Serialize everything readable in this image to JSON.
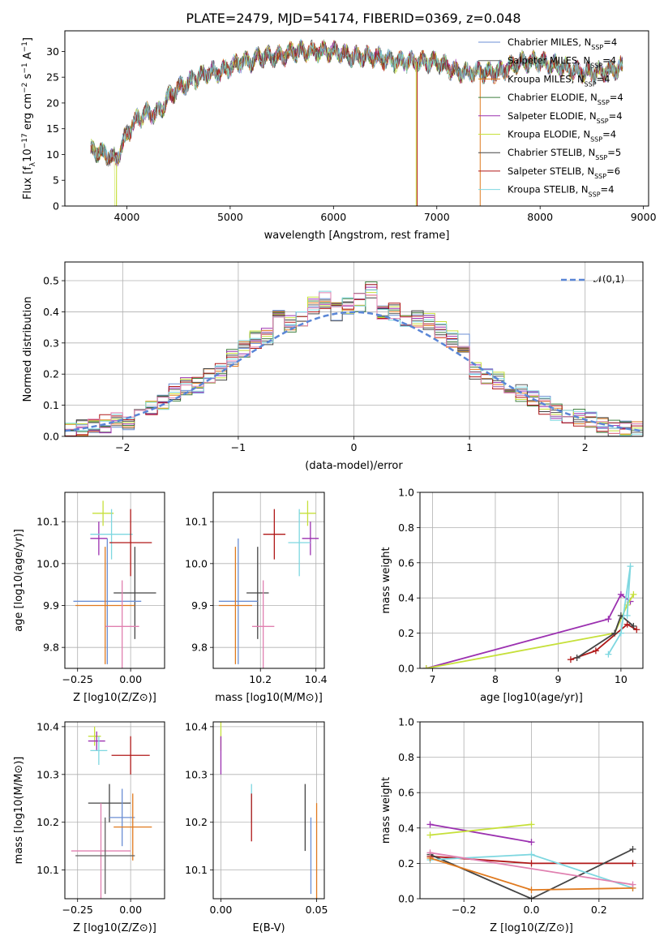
{
  "figure": {
    "title": "PLATE=2479, MJD=54174, FIBERID=0369, z=0.048"
  },
  "colors": {
    "series": [
      "#6b8fd4",
      "#5f5f5f",
      "#e07a1f",
      "#3f7f3f",
      "#9b30b0",
      "#c6e03a",
      "#444444",
      "#b01818",
      "#7ed7e0"
    ],
    "pink": "#e080b0",
    "green2": "#80c040",
    "normal_curve": "#5a86d6",
    "grid": "#b0b0b0"
  },
  "chart_data": [
    {
      "id": "spectrum",
      "type": "line",
      "xlabel": "wavelength [Angstrom, rest frame]",
      "ylabel": "Flux [f_λ10^-17 erg cm^-2 s^-1 A^-1]",
      "xlim": [
        3400,
        9050
      ],
      "ylim": [
        0,
        34
      ],
      "xticks": [
        4000,
        5000,
        6000,
        7000,
        8000,
        9000
      ],
      "yticks": [
        0,
        5,
        10,
        15,
        20,
        25,
        30
      ],
      "grid": false,
      "legend": "top-right",
      "legend_entries": [
        "Chabrier MILES, N_SSP=4",
        "Salpeter MILES, N_SSP=4",
        "Kroupa MILES, N_SSP=4",
        "Chabrier ELODIE, N_SSP=4",
        "Salpeter ELODIE, N_SSP=4",
        "Kroupa ELODIE, N_SSP=4",
        "Chabrier STELIB, N_SSP=5",
        "Salpeter STELIB, N_SSP=6",
        "Kroupa STELIB, N_SSP=4"
      ],
      "continuum": {
        "x": [
          3650,
          3800,
          3900,
          4000,
          4100,
          4200,
          4300,
          4400,
          4500,
          4600,
          4700,
          4800,
          4900,
          5000,
          5100,
          5200,
          5300,
          5400,
          5500,
          5600,
          5700,
          5800,
          5900,
          6000,
          6200,
          6400,
          6600,
          6800,
          7000,
          7200,
          7400,
          7600,
          7800,
          8000,
          8200,
          8400,
          8600,
          8800
        ],
        "y": [
          11,
          10,
          9,
          14,
          17,
          18,
          18,
          21,
          23,
          24,
          25,
          26,
          26,
          27,
          28,
          28,
          29,
          29,
          29,
          30,
          30,
          30,
          30,
          30,
          29,
          29,
          28,
          28,
          28,
          26,
          26,
          26,
          28,
          28,
          27,
          26,
          26,
          27
        ]
      }
    },
    {
      "id": "residual-histogram",
      "type": "bar",
      "xlabel": "(data-model)/error",
      "ylabel": "Normed distribution",
      "xlim": [
        -2.5,
        2.5
      ],
      "ylim": [
        0,
        0.56
      ],
      "xticks": [
        -2,
        -1,
        0,
        1,
        2
      ],
      "yticks": [
        0.0,
        0.1,
        0.2,
        0.3,
        0.4,
        0.5
      ],
      "grid": true,
      "legend": "top-right",
      "legend_entries": [
        "𝒩(0,1)"
      ],
      "bin_width": 0.1,
      "bin_centers": [
        -2.45,
        -2.35,
        -2.25,
        -2.15,
        -2.05,
        -1.95,
        -1.85,
        -1.75,
        -1.65,
        -1.55,
        -1.45,
        -1.35,
        -1.25,
        -1.15,
        -1.05,
        -0.95,
        -0.85,
        -0.75,
        -0.65,
        -0.55,
        -0.45,
        -0.35,
        -0.25,
        -0.15,
        -0.05,
        0.05,
        0.15,
        0.25,
        0.35,
        0.45,
        0.55,
        0.65,
        0.75,
        0.85,
        0.95,
        1.05,
        1.15,
        1.25,
        1.35,
        1.45,
        1.55,
        1.65,
        1.75,
        1.85,
        1.95,
        2.05,
        2.15,
        2.25,
        2.35,
        2.45
      ],
      "series_values": [
        0.02,
        0.03,
        0.03,
        0.04,
        0.05,
        0.05,
        0.07,
        0.09,
        0.11,
        0.14,
        0.16,
        0.16,
        0.19,
        0.21,
        0.25,
        0.28,
        0.31,
        0.32,
        0.39,
        0.36,
        0.38,
        0.42,
        0.44,
        0.4,
        0.42,
        0.43,
        0.47,
        0.39,
        0.4,
        0.36,
        0.38,
        0.37,
        0.34,
        0.31,
        0.3,
        0.21,
        0.19,
        0.18,
        0.16,
        0.14,
        0.12,
        0.1,
        0.08,
        0.07,
        0.06,
        0.05,
        0.04,
        0.03,
        0.03,
        0.02
      ]
    },
    {
      "id": "age-vs-z",
      "type": "scatter",
      "xlabel": "Z [log10(Z/Z⊙)]",
      "ylabel": "age [log10(age/yr)]",
      "xlim": [
        -0.31,
        0.16
      ],
      "ylim": [
        9.75,
        10.17
      ],
      "xticks": [
        -0.25,
        0.0
      ],
      "yticks": [
        9.8,
        9.9,
        10.0,
        10.1
      ],
      "grid": true,
      "points": [
        {
          "x": -0.13,
          "y": 10.12,
          "xerr": 0.05,
          "yerr": 0.03
        },
        {
          "x": -0.15,
          "y": 10.06,
          "xerr": 0.04,
          "yerr": 0.04
        },
        {
          "x": -0.09,
          "y": 10.07,
          "xerr": 0.1,
          "yerr": 0.06
        },
        {
          "x": 0.0,
          "y": 10.05,
          "xerr": 0.1,
          "yerr": 0.08
        },
        {
          "x": 0.02,
          "y": 9.93,
          "xerr": 0.1,
          "yerr": 0.11
        },
        {
          "x": -0.11,
          "y": 9.91,
          "xerr": 0.16,
          "yerr": 0.15
        },
        {
          "x": -0.12,
          "y": 9.9,
          "xerr": 0.14,
          "yerr": 0.14
        },
        {
          "x": -0.04,
          "y": 9.85,
          "xerr": 0.08,
          "yerr": 0.11
        }
      ]
    },
    {
      "id": "age-vs-mass",
      "type": "scatter",
      "xlabel": "mass [log10(M/M⊙)]",
      "ylabel": "",
      "xlim": [
        10.03,
        10.43
      ],
      "ylim": [
        9.75,
        10.17
      ],
      "xticks": [
        10.2,
        10.4
      ],
      "yticks": [
        9.8,
        9.9,
        10.0,
        10.1
      ],
      "grid": true,
      "points": [
        {
          "x": 10.37,
          "y": 10.12,
          "xerr": 0.03,
          "yerr": 0.03
        },
        {
          "x": 10.38,
          "y": 10.06,
          "xerr": 0.03,
          "yerr": 0.04
        },
        {
          "x": 10.34,
          "y": 10.05,
          "xerr": 0.04,
          "yerr": 0.08
        },
        {
          "x": 10.25,
          "y": 10.07,
          "xerr": 0.04,
          "yerr": 0.06
        },
        {
          "x": 10.19,
          "y": 9.93,
          "xerr": 0.04,
          "yerr": 0.11
        },
        {
          "x": 10.12,
          "y": 9.91,
          "xerr": 0.07,
          "yerr": 0.15
        },
        {
          "x": 10.11,
          "y": 9.9,
          "xerr": 0.06,
          "yerr": 0.14
        },
        {
          "x": 10.21,
          "y": 9.85,
          "xerr": 0.04,
          "yerr": 0.11
        }
      ]
    },
    {
      "id": "massweight-vs-age",
      "type": "line",
      "xlabel": "age [log10(age/yr)]",
      "ylabel": "mass weight",
      "xlim": [
        6.8,
        10.35
      ],
      "ylim": [
        0,
        1.0
      ],
      "xticks": [
        7,
        8,
        9,
        10
      ],
      "yticks": [
        0.0,
        0.2,
        0.4,
        0.6,
        0.8,
        1.0
      ],
      "grid": true,
      "series": [
        {
          "x": [
            6.9,
            9.8,
            10.0,
            10.15
          ],
          "y": [
            0.0,
            0.28,
            0.42,
            0.38
          ]
        },
        {
          "x": [
            6.9,
            9.9,
            10.1,
            10.2
          ],
          "y": [
            0.0,
            0.2,
            0.36,
            0.42
          ]
        },
        {
          "x": [
            9.2,
            9.6,
            10.1,
            10.25
          ],
          "y": [
            0.05,
            0.1,
            0.25,
            0.22
          ]
        },
        {
          "x": [
            9.3,
            9.9,
            10.0,
            10.2
          ],
          "y": [
            0.06,
            0.2,
            0.3,
            0.24
          ]
        },
        {
          "x": [
            9.8,
            10.0,
            10.15,
            10.1
          ],
          "y": [
            0.08,
            0.2,
            0.58,
            0.3
          ]
        }
      ]
    },
    {
      "id": "mass-vs-z",
      "type": "scatter",
      "xlabel": "Z [log10(Z/Z⊙)]",
      "ylabel": "mass [log10(M/M⊙)]",
      "xlim": [
        -0.31,
        0.16
      ],
      "ylim": [
        10.04,
        10.41
      ],
      "xticks": [
        -0.25,
        0.0
      ],
      "yticks": [
        10.1,
        10.2,
        10.3,
        10.4
      ],
      "grid": true,
      "points": [
        {
          "x": -0.17,
          "y": 10.38,
          "xerr": 0.03,
          "yerr": 0.02
        },
        {
          "x": -0.16,
          "y": 10.37,
          "xerr": 0.04,
          "yerr": 0.02
        },
        {
          "x": -0.15,
          "y": 10.35,
          "xerr": 0.04,
          "yerr": 0.03
        },
        {
          "x": 0.0,
          "y": 10.34,
          "xerr": 0.09,
          "yerr": 0.04
        },
        {
          "x": -0.1,
          "y": 10.24,
          "xerr": 0.1,
          "yerr": 0.04
        },
        {
          "x": -0.04,
          "y": 10.21,
          "xerr": 0.06,
          "yerr": 0.06
        },
        {
          "x": 0.01,
          "y": 10.19,
          "xerr": 0.09,
          "yerr": 0.07
        },
        {
          "x": -0.14,
          "y": 10.14,
          "xerr": 0.14,
          "yerr": 0.1
        },
        {
          "x": -0.12,
          "y": 10.13,
          "xerr": 0.14,
          "yerr": 0.08
        }
      ]
    },
    {
      "id": "mass-vs-ebv",
      "type": "scatter",
      "xlabel": "E(B-V)",
      "ylabel": "",
      "xlim": [
        -0.004,
        0.054
      ],
      "ylim": [
        10.04,
        10.41
      ],
      "xticks": [
        0.0,
        0.05
      ],
      "yticks": [
        10.1,
        10.2,
        10.3,
        10.4
      ],
      "grid": true,
      "points": [
        {
          "x": 0.0,
          "y": 10.38,
          "xerr": 0,
          "yerr": 0.03
        },
        {
          "x": 0.0,
          "y": 10.34,
          "xerr": 0,
          "yerr": 0.04
        },
        {
          "x": 0.016,
          "y": 10.24,
          "xerr": 0,
          "yerr": 0.04
        },
        {
          "x": 0.016,
          "y": 10.21,
          "xerr": 0,
          "yerr": 0.05
        },
        {
          "x": 0.044,
          "y": 10.21,
          "xerr": 0,
          "yerr": 0.07
        },
        {
          "x": 0.047,
          "y": 10.13,
          "xerr": 0,
          "yerr": 0.08
        },
        {
          "x": 0.05,
          "y": 10.14,
          "xerr": 0,
          "yerr": 0.1
        }
      ]
    },
    {
      "id": "massweight-vs-z",
      "type": "line",
      "xlabel": "Z [log10(Z/Z⊙)]",
      "ylabel": "mass weight",
      "xlim": [
        -0.33,
        0.33
      ],
      "ylim": [
        0,
        1.0
      ],
      "xticks": [
        -0.2,
        0.0,
        0.2
      ],
      "yticks": [
        0.0,
        0.2,
        0.4,
        0.6,
        0.8,
        1.0
      ],
      "grid": true,
      "series": [
        {
          "x": [
            -0.3,
            0.0
          ],
          "y": [
            0.42,
            0.32
          ]
        },
        {
          "x": [
            -0.3,
            0.0
          ],
          "y": [
            0.36,
            0.42
          ]
        },
        {
          "x": [
            -0.3,
            0.0,
            0.3
          ],
          "y": [
            0.24,
            0.2,
            0.2
          ]
        },
        {
          "x": [
            -0.3,
            0.0,
            0.3
          ],
          "y": [
            0.25,
            0.0,
            0.28
          ]
        },
        {
          "x": [
            -0.3,
            0.0,
            0.3
          ],
          "y": [
            0.22,
            0.25,
            0.06
          ]
        },
        {
          "x": [
            -0.3,
            0.0,
            0.3
          ],
          "y": [
            0.23,
            0.05,
            0.06
          ]
        },
        {
          "x": [
            -0.3,
            0.3
          ],
          "y": [
            0.26,
            0.08
          ]
        }
      ]
    }
  ]
}
